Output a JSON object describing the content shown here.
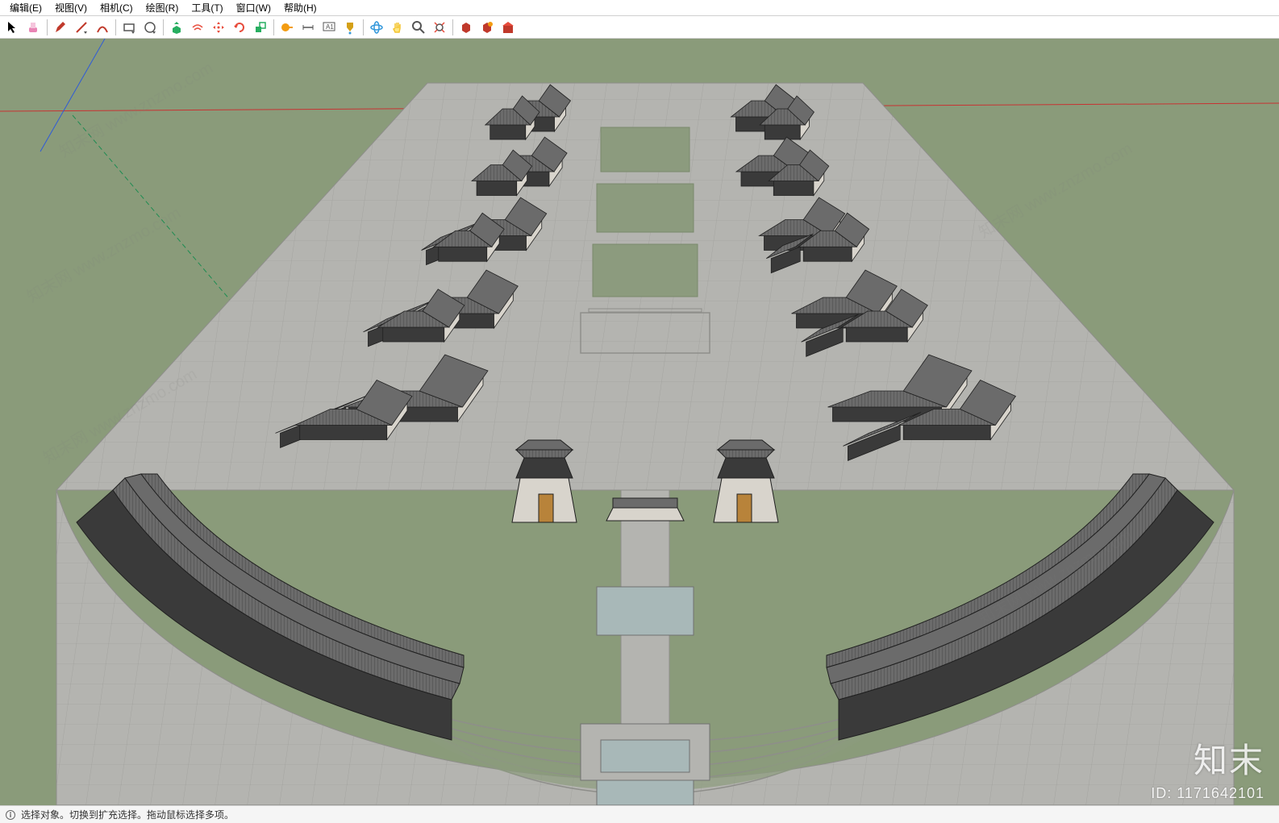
{
  "menu": {
    "items": [
      {
        "label": "编辑(E)"
      },
      {
        "label": "视图(V)"
      },
      {
        "label": "相机(C)"
      },
      {
        "label": "绘图(R)"
      },
      {
        "label": "工具(T)"
      },
      {
        "label": "窗口(W)"
      },
      {
        "label": "帮助(H)"
      }
    ]
  },
  "toolbar": {
    "buttons": [
      {
        "name": "select-tool-icon",
        "color": "#000000"
      },
      {
        "name": "eraser-icon",
        "color": "#e985b5"
      },
      {
        "name": "pencil-icon",
        "color": "#c0392b"
      },
      {
        "name": "line-icon",
        "color": "#c0392b"
      },
      {
        "name": "arc-icon",
        "color": "#c0392b"
      },
      {
        "name": "rectangle-icon",
        "color": "#555555"
      },
      {
        "name": "circle-icon",
        "color": "#555555"
      },
      {
        "name": "pushpull-icon",
        "color": "#27ae60"
      },
      {
        "name": "offset-icon",
        "color": "#e74c3c"
      },
      {
        "name": "move-icon",
        "color": "#e74c3c"
      },
      {
        "name": "rotate-icon",
        "color": "#e74c3c"
      },
      {
        "name": "scale-icon",
        "color": "#27ae60"
      },
      {
        "name": "tape-icon",
        "color": "#f39c12"
      },
      {
        "name": "protractor-icon",
        "color": "#f39c12"
      },
      {
        "name": "text-icon",
        "color": "#555555"
      },
      {
        "name": "paint-icon",
        "color": "#d4a017"
      },
      {
        "name": "orbit-icon",
        "color": "#3498db"
      },
      {
        "name": "pan-icon",
        "color": "#f4c430"
      },
      {
        "name": "zoom-icon",
        "color": "#555555"
      },
      {
        "name": "zoom-extents-icon",
        "color": "#e74c3c"
      },
      {
        "name": "previous-view-icon",
        "color": "#c0392b"
      },
      {
        "name": "next-view-icon",
        "color": "#c0392b"
      },
      {
        "name": "warehouse-icon",
        "color": "#c0392b"
      }
    ]
  },
  "status": {
    "text": "选择对象。切换到扩充选择。拖动鼠标选择多项。"
  },
  "watermark": {
    "logo": "知末",
    "id": "ID: 1171642101",
    "diag": "知末网 www.znzmo.com"
  },
  "scene": {
    "ground_color": "#8a9b7a",
    "plaza_color": "#b4b4b0",
    "grid_line": "#9a9a96",
    "building_roof": "#6b6b6b",
    "building_roof_dark": "#4a4a4a",
    "building_wall": "#d8d4cc",
    "building_wall_dark": "#3a3a3a",
    "grass_color": "#8c9b7e",
    "water_color": "#a8b8b8",
    "door_color": "#b8833a",
    "axis_red": "#c83232",
    "axis_green": "#1e8c52",
    "axis_blue": "#2e5bd8",
    "edge_color": "#202020"
  }
}
